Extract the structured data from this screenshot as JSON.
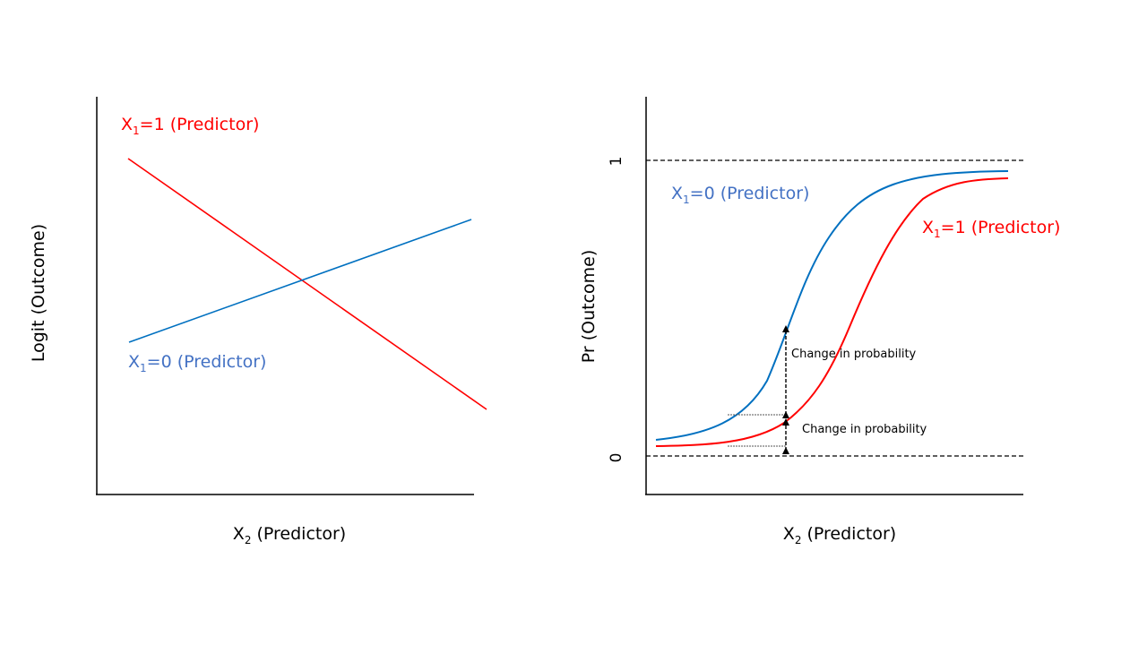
{
  "left_panel": {
    "ylabel": "Logit (Outcome)",
    "xlabel": {
      "main": "X",
      "sub": "2",
      "rest": " (Predictor)"
    },
    "series": [
      {
        "id": "x1_equals_1",
        "main": "X",
        "sub": "1",
        "rest": "=1 (Predictor)",
        "color": "#ff0000"
      },
      {
        "id": "x1_equals_0",
        "main": "X",
        "sub": "1",
        "rest": "=0 (Predictor)",
        "color": "#4472c4"
      }
    ],
    "line_color_blue": "#0070c0",
    "line_color_red": "#ff0000"
  },
  "right_panel": {
    "ylabel": "Pr (Outcome)",
    "xlabel": {
      "main": "X",
      "sub": "2",
      "rest": " (Predictor)"
    },
    "tick_top": "1",
    "tick_bottom": "0",
    "series": [
      {
        "id": "x1_equals_0",
        "main": "X",
        "sub": "1",
        "rest": "=0 (Predictor)",
        "color": "#4472c4"
      },
      {
        "id": "x1_equals_1",
        "main": "X",
        "sub": "1",
        "rest": "=1 (Predictor)",
        "color": "#ff0000"
      }
    ],
    "annotations": [
      "Change in probability",
      "Change in probability"
    ],
    "curve_color_blue": "#0070c0",
    "curve_color_red": "#ff0000"
  }
}
